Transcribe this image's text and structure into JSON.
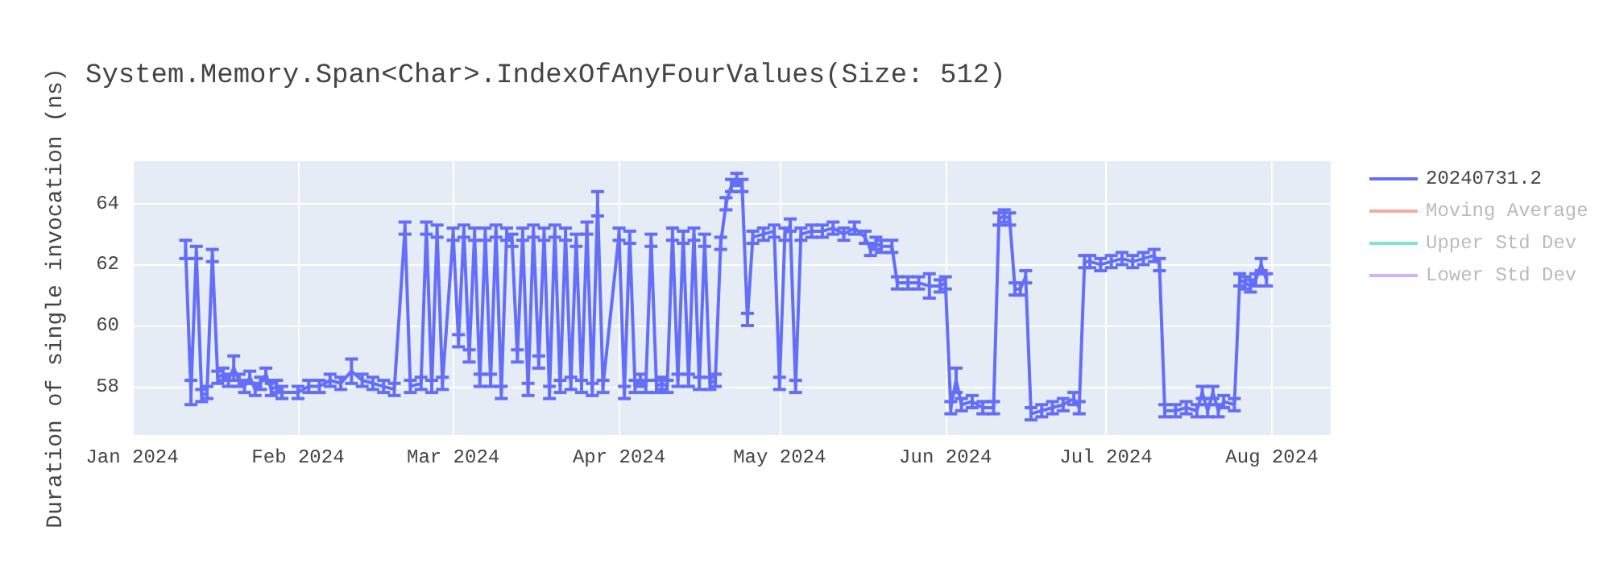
{
  "chart_data": {
    "type": "line",
    "title": "System.Memory.Span<Char>.IndexOfAnyFourValues(Size: 512)",
    "ylabel": "Duration of single invocation (ns)",
    "x": [
      "2024-01-11",
      "2024-01-12",
      "2024-01-13",
      "2024-01-14",
      "2024-01-15",
      "2024-01-16",
      "2024-01-17",
      "2024-01-18",
      "2024-01-19",
      "2024-01-20",
      "2024-01-21",
      "2024-01-22",
      "2024-01-23",
      "2024-01-24",
      "2024-01-25",
      "2024-01-26",
      "2024-01-27",
      "2024-01-28",
      "2024-01-29",
      "2024-02-01",
      "2024-02-03",
      "2024-02-05",
      "2024-02-07",
      "2024-02-09",
      "2024-02-11",
      "2024-02-13",
      "2024-02-15",
      "2024-02-17",
      "2024-02-19",
      "2024-02-21",
      "2024-02-22",
      "2024-02-24",
      "2024-02-25",
      "2024-02-26",
      "2024-02-27",
      "2024-02-28",
      "2024-03-01",
      "2024-03-02",
      "2024-03-03",
      "2024-03-04",
      "2024-03-05",
      "2024-03-06",
      "2024-03-07",
      "2024-03-08",
      "2024-03-09",
      "2024-03-10",
      "2024-03-11",
      "2024-03-12",
      "2024-03-13",
      "2024-03-14",
      "2024-03-15",
      "2024-03-16",
      "2024-03-17",
      "2024-03-18",
      "2024-03-19",
      "2024-03-20",
      "2024-03-21",
      "2024-03-22",
      "2024-03-23",
      "2024-03-24",
      "2024-03-25",
      "2024-03-26",
      "2024-03-27",
      "2024-03-28",
      "2024-03-29",
      "2024-04-01",
      "2024-04-02",
      "2024-04-03",
      "2024-04-04",
      "2024-04-05",
      "2024-04-06",
      "2024-04-07",
      "2024-04-08",
      "2024-04-09",
      "2024-04-10",
      "2024-04-11",
      "2024-04-12",
      "2024-04-13",
      "2024-04-14",
      "2024-04-15",
      "2024-04-16",
      "2024-04-17",
      "2024-04-18",
      "2024-04-19",
      "2024-04-20",
      "2024-04-21",
      "2024-04-22",
      "2024-04-23",
      "2024-04-24",
      "2024-04-25",
      "2024-04-26",
      "2024-04-28",
      "2024-04-30",
      "2024-05-01",
      "2024-05-02",
      "2024-05-03",
      "2024-05-04",
      "2024-05-05",
      "2024-05-07",
      "2024-05-09",
      "2024-05-11",
      "2024-05-13",
      "2024-05-15",
      "2024-05-17",
      "2024-05-18",
      "2024-05-19",
      "2024-05-20",
      "2024-05-22",
      "2024-05-23",
      "2024-05-25",
      "2024-05-27",
      "2024-05-29",
      "2024-05-31",
      "2024-06-01",
      "2024-06-02",
      "2024-06-03",
      "2024-06-04",
      "2024-06-06",
      "2024-06-08",
      "2024-06-10",
      "2024-06-11",
      "2024-06-12",
      "2024-06-13",
      "2024-06-14",
      "2024-06-15",
      "2024-06-16",
      "2024-06-17",
      "2024-06-19",
      "2024-06-21",
      "2024-06-23",
      "2024-06-25",
      "2024-06-26",
      "2024-06-27",
      "2024-06-28",
      "2024-06-30",
      "2024-07-02",
      "2024-07-04",
      "2024-07-06",
      "2024-07-08",
      "2024-07-10",
      "2024-07-11",
      "2024-07-12",
      "2024-07-14",
      "2024-07-16",
      "2024-07-18",
      "2024-07-19",
      "2024-07-20",
      "2024-07-21",
      "2024-07-22",
      "2024-07-23",
      "2024-07-25",
      "2024-07-26",
      "2024-07-27",
      "2024-07-28",
      "2024-07-29",
      "2024-07-30",
      "2024-07-31"
    ],
    "series": [
      {
        "name": "20240731.2",
        "color": "#636efa",
        "values": [
          62.5,
          57.8,
          62.4,
          57.7,
          57.8,
          62.3,
          58.3,
          58.4,
          58.2,
          58.6,
          58.2,
          58.0,
          58.3,
          57.9,
          58.1,
          58.4,
          57.9,
          58.0,
          57.8,
          57.8,
          58.0,
          58.0,
          58.2,
          58.1,
          58.5,
          58.2,
          58.1,
          58.0,
          57.9,
          63.2,
          58.0,
          58.1,
          63.2,
          58.0,
          63.1,
          58.1,
          63.0,
          59.5,
          63.1,
          59.0,
          63.0,
          58.2,
          63.0,
          58.2,
          63.1,
          57.8,
          63.0,
          62.8,
          59.0,
          63.0,
          57.9,
          63.1,
          58.8,
          63.0,
          57.8,
          63.1,
          58.0,
          63.0,
          58.1,
          62.8,
          58.0,
          63.2,
          57.9,
          64.0,
          58.0,
          63.0,
          57.8,
          62.9,
          58.0,
          58.2,
          58.0,
          62.8,
          58.0,
          58.1,
          58.0,
          63.0,
          58.2,
          62.9,
          58.2,
          63.0,
          58.1,
          62.8,
          58.1,
          58.2,
          62.7,
          64.0,
          64.6,
          64.8,
          64.6,
          60.2,
          62.9,
          63.0,
          63.1,
          58.1,
          63.0,
          63.3,
          58.0,
          63.0,
          63.1,
          63.1,
          63.2,
          63.0,
          63.2,
          62.9,
          62.5,
          62.7,
          62.6,
          62.6,
          61.4,
          61.4,
          61.4,
          61.3,
          61.3,
          61.4,
          57.3,
          58.2,
          57.4,
          57.5,
          57.3,
          57.3,
          63.5,
          63.6,
          63.5,
          61.2,
          61.2,
          61.6,
          57.1,
          57.2,
          57.3,
          57.4,
          57.6,
          57.3,
          62.1,
          62.1,
          62.0,
          62.1,
          62.2,
          62.1,
          62.2,
          62.3,
          62.0,
          57.2,
          57.2,
          57.3,
          57.2,
          57.8,
          57.2,
          57.8,
          57.2,
          57.5,
          57.4,
          61.5,
          61.4,
          61.3,
          61.5,
          62.0,
          61.5
        ],
        "errors": [
          0.3,
          0.4,
          0.2,
          0.2,
          0.2,
          0.2,
          0.2,
          0.2,
          0.2,
          0.4,
          0.2,
          0.2,
          0.2,
          0.2,
          0.2,
          0.2,
          0.2,
          0.2,
          0.2,
          0.2,
          0.2,
          0.2,
          0.2,
          0.2,
          0.4,
          0.2,
          0.2,
          0.2,
          0.2,
          0.2,
          0.2,
          0.2,
          0.2,
          0.2,
          0.2,
          0.2,
          0.2,
          0.2,
          0.2,
          0.2,
          0.2,
          0.2,
          0.2,
          0.2,
          0.2,
          0.2,
          0.2,
          0.2,
          0.2,
          0.2,
          0.2,
          0.2,
          0.2,
          0.2,
          0.2,
          0.2,
          0.2,
          0.2,
          0.2,
          0.2,
          0.2,
          0.2,
          0.2,
          0.4,
          0.2,
          0.2,
          0.2,
          0.2,
          0.2,
          0.2,
          0.2,
          0.2,
          0.2,
          0.2,
          0.2,
          0.2,
          0.2,
          0.2,
          0.2,
          0.2,
          0.2,
          0.2,
          0.2,
          0.2,
          0.2,
          0.2,
          0.2,
          0.2,
          0.2,
          0.2,
          0.2,
          0.2,
          0.2,
          0.2,
          0.2,
          0.2,
          0.2,
          0.2,
          0.2,
          0.2,
          0.2,
          0.2,
          0.2,
          0.2,
          0.2,
          0.2,
          0.2,
          0.2,
          0.2,
          0.2,
          0.2,
          0.4,
          0.2,
          0.2,
          0.2,
          0.4,
          0.2,
          0.2,
          0.2,
          0.2,
          0.2,
          0.2,
          0.2,
          0.2,
          0.2,
          0.2,
          0.2,
          0.2,
          0.2,
          0.2,
          0.2,
          0.2,
          0.2,
          0.2,
          0.2,
          0.2,
          0.2,
          0.2,
          0.2,
          0.2,
          0.2,
          0.2,
          0.2,
          0.2,
          0.2,
          0.2,
          0.2,
          0.2,
          0.2,
          0.2,
          0.2,
          0.2,
          0.2,
          0.2,
          0.2,
          0.2,
          0.2
        ]
      },
      {
        "name": "Moving Average",
        "color": "#ef553b",
        "values": [
          null,
          null,
          null,
          null,
          null,
          null,
          null,
          null,
          null,
          null,
          null,
          null,
          null,
          null,
          null,
          null,
          null,
          null,
          null,
          null,
          null,
          null,
          null,
          null,
          null,
          null,
          null,
          null,
          null,
          null,
          null,
          null,
          null,
          null,
          null,
          null,
          null,
          null,
          null,
          null,
          null,
          null,
          null,
          null,
          null,
          null,
          null,
          null,
          null,
          null,
          null,
          null,
          null,
          null,
          null,
          null,
          null,
          null,
          null,
          null,
          null,
          null,
          null,
          null,
          null,
          null,
          null,
          null,
          null,
          null,
          null,
          null,
          null,
          null,
          null,
          null,
          null,
          null,
          null,
          null,
          null,
          null,
          null,
          null,
          null,
          null,
          null,
          null,
          null,
          null,
          null,
          null,
          null,
          null,
          null,
          null,
          null,
          null,
          null,
          null,
          null,
          null,
          null,
          null,
          null,
          null,
          null,
          null,
          null,
          null,
          null,
          null,
          null,
          null,
          null,
          null,
          null,
          null,
          null,
          null,
          null,
          null,
          null,
          null,
          null,
          null,
          null,
          null,
          null,
          null,
          null,
          null,
          null,
          null,
          null,
          null,
          null,
          null,
          null,
          null,
          null,
          null,
          null,
          null,
          null,
          null,
          null,
          null,
          null,
          null,
          null,
          null,
          null,
          null,
          null,
          null,
          null
        ]
      },
      {
        "name": "Upper Std Dev",
        "color": "#00cc96",
        "values": [
          null,
          null,
          null,
          null,
          null,
          null,
          null,
          null,
          null,
          null,
          null,
          null,
          null,
          null,
          null,
          null,
          null,
          null,
          null,
          null,
          null,
          null,
          null,
          null,
          null,
          null,
          null,
          null,
          null,
          null,
          null,
          null,
          null,
          null,
          null,
          null,
          null,
          null,
          null,
          null,
          null,
          null,
          null,
          null,
          null,
          null,
          null,
          null,
          null,
          null,
          null,
          null,
          null,
          null,
          null,
          null,
          null,
          null,
          null,
          null,
          null,
          null,
          null,
          null,
          null,
          null,
          null,
          null,
          null,
          null,
          null,
          null,
          null,
          null,
          null,
          null,
          null,
          null,
          null,
          null,
          null,
          null,
          null,
          null,
          null,
          null,
          null,
          null,
          null,
          null,
          null,
          null,
          null,
          null,
          null,
          null,
          null,
          null,
          null,
          null,
          null,
          null,
          null,
          null,
          null,
          null,
          null,
          null,
          null,
          null,
          null,
          null,
          null,
          null,
          null,
          null,
          null,
          null,
          null,
          null,
          null,
          null,
          null,
          null,
          null,
          null,
          null,
          null,
          null,
          null,
          null,
          null,
          null,
          null,
          null,
          null,
          null,
          null,
          null,
          null,
          null,
          null,
          null,
          null,
          null,
          null,
          null,
          null,
          null,
          null,
          null,
          null,
          null,
          null,
          null,
          null,
          null
        ]
      },
      {
        "name": "Lower Std Dev",
        "color": "#ab63fa",
        "values": [
          null,
          null,
          null,
          null,
          null,
          null,
          null,
          null,
          null,
          null,
          null,
          null,
          null,
          null,
          null,
          null,
          null,
          null,
          null,
          null,
          null,
          null,
          null,
          null,
          null,
          null,
          null,
          null,
          null,
          null,
          null,
          null,
          null,
          null,
          null,
          null,
          null,
          null,
          null,
          null,
          null,
          null,
          null,
          null,
          null,
          null,
          null,
          null,
          null,
          null,
          null,
          null,
          null,
          null,
          null,
          null,
          null,
          null,
          null,
          null,
          null,
          null,
          null,
          null,
          null,
          null,
          null,
          null,
          null,
          null,
          null,
          null,
          null,
          null,
          null,
          null,
          null,
          null,
          null,
          null,
          null,
          null,
          null,
          null,
          null,
          null,
          null,
          null,
          null,
          null,
          null,
          null,
          null,
          null,
          null,
          null,
          null,
          null,
          null,
          null,
          null,
          null,
          null,
          null,
          null,
          null,
          null,
          null,
          null,
          null,
          null,
          null,
          null,
          null,
          null,
          null,
          null,
          null,
          null,
          null,
          null,
          null,
          null,
          null,
          null,
          null,
          null,
          null,
          null,
          null,
          null,
          null,
          null,
          null,
          null,
          null,
          null,
          null,
          null,
          null,
          null,
          null,
          null,
          null,
          null,
          null,
          null,
          null,
          null,
          null,
          null,
          null,
          null,
          null,
          null,
          null,
          null
        ]
      }
    ],
    "xlim": [
      "2024-01-01",
      "2024-08-12"
    ],
    "xticks": [
      {
        "value": "2024-01-01",
        "label": "Jan 2024"
      },
      {
        "value": "2024-02-01",
        "label": "Feb 2024"
      },
      {
        "value": "2024-03-01",
        "label": "Mar 2024"
      },
      {
        "value": "2024-04-01",
        "label": "Apr 2024"
      },
      {
        "value": "2024-05-01",
        "label": "May 2024"
      },
      {
        "value": "2024-06-01",
        "label": "Jun 2024"
      },
      {
        "value": "2024-07-01",
        "label": "Jul 2024"
      },
      {
        "value": "2024-08-01",
        "label": "Aug 2024"
      }
    ],
    "ylim": [
      56.4,
      65.4
    ],
    "yticks": [
      58,
      60,
      62,
      64
    ],
    "grid": true,
    "legend": "top right",
    "marker": "none",
    "line_style": "solid"
  }
}
